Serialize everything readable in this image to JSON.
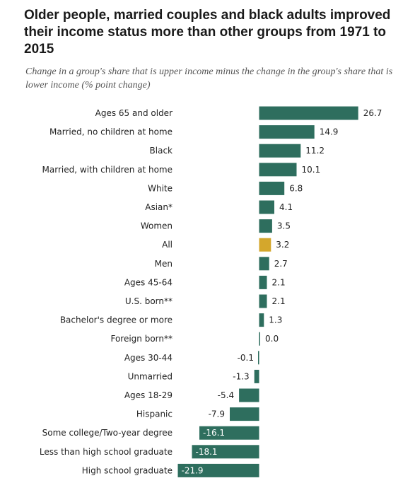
{
  "chart_data": {
    "type": "bar",
    "orientation": "horizontal",
    "title": "Older people, married couples and black adults improved their income status more than other groups from 1971 to 2015",
    "subtitle": "Change in a group's share that is upper income minus the change in the group's share that is lower income (% point change)",
    "categories": [
      "Ages 65 and older",
      "Married, no children at home",
      "Black",
      "Married, with children at home",
      "White",
      "Asian*",
      "Women",
      "All",
      "Men",
      "Ages 45-64",
      "U.S. born**",
      "Bachelor's degree or more",
      "Foreign born**",
      "Ages 30-44",
      "Unmarried",
      "Ages 18-29",
      "Hispanic",
      "Some college/Two-year degree",
      "Less than high school graduate",
      "High school graduate"
    ],
    "values": [
      26.7,
      14.9,
      11.2,
      10.1,
      6.8,
      4.1,
      3.5,
      3.2,
      2.7,
      2.1,
      2.1,
      1.3,
      0.0,
      -0.1,
      -1.3,
      -5.4,
      -7.9,
      -16.1,
      -18.1,
      -21.9
    ],
    "value_labels": [
      "26.7",
      "14.9",
      "11.2",
      "10.1",
      "6.8",
      "4.1",
      "3.5",
      "3.2",
      "2.7",
      "2.1",
      "2.1",
      "1.3",
      "0.0",
      "-0.1",
      "-1.3",
      "-5.4",
      "-7.9",
      "-16.1",
      "-18.1",
      "-21.9"
    ],
    "highlight_category": "All",
    "colors": {
      "bar": "#2e6e5e",
      "highlight": "#d4a72c"
    },
    "xlim": [
      -21.9,
      26.7
    ],
    "grid": false,
    "legend": "none"
  }
}
